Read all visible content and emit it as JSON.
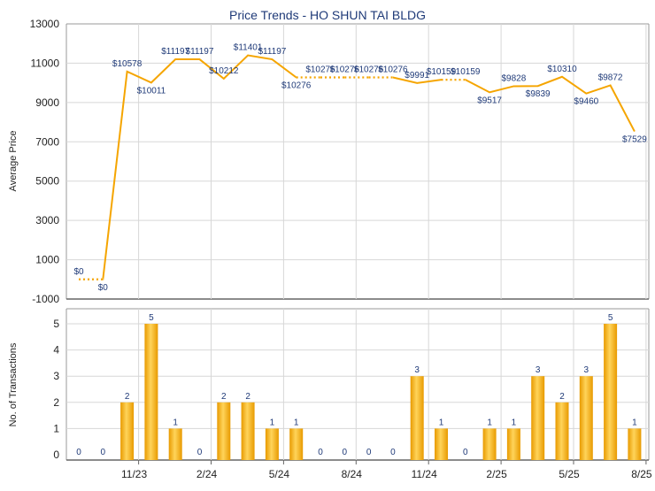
{
  "chart_data": [
    {
      "type": "line",
      "title": "Price Trends - HO SHUN TAI BLDG",
      "ylabel": "Average Price",
      "ylim": [
        -1000,
        13000
      ],
      "yticks": [
        "13000",
        "11000",
        "9000",
        "7000",
        "5000",
        "3000",
        "1000",
        "-1000"
      ],
      "grid": true,
      "line_color": "#f5a500",
      "x": [
        "9/23",
        "10/23",
        "11/23",
        "12/23",
        "1/24",
        "2/24",
        "3/24",
        "4/24",
        "5/24",
        "6/24",
        "7/24",
        "8/24",
        "9/24",
        "10/24",
        "11/24",
        "12/24",
        "1/25",
        "2/25",
        "3/25",
        "4/25",
        "5/25",
        "6/25",
        "7/25",
        "8/25"
      ],
      "values": [
        0,
        0,
        10578,
        10011,
        11197,
        11197,
        10212,
        11401,
        11197,
        10276,
        10276,
        10276,
        10276,
        10276,
        9991,
        10159,
        10159,
        9517,
        9828,
        9839,
        10310,
        9460,
        9872,
        7529
      ],
      "value_labels": [
        "$0",
        "$0",
        "$10578",
        "$10011",
        "$11197",
        "$11197",
        "$10212",
        "$11401",
        "$11197",
        "$10276",
        "$10276",
        "$10276",
        "$10276",
        "$10276",
        "$9991",
        "$10159",
        "$10159",
        "$9517",
        "$9828",
        "$9839",
        "$10310",
        "$9460",
        "$9872",
        "$7529"
      ],
      "dotted_points": [
        1,
        10,
        11,
        12,
        13,
        16
      ]
    },
    {
      "type": "bar",
      "ylabel": "No. of Transactions",
      "ylim": [
        0,
        5
      ],
      "yticks": [
        "5",
        "4",
        "3",
        "2",
        "1",
        "0"
      ],
      "grid": true,
      "bar_color": "#f5a500",
      "x": [
        "9/23",
        "10/23",
        "11/23",
        "12/23",
        "1/24",
        "2/24",
        "3/24",
        "4/24",
        "5/24",
        "6/24",
        "7/24",
        "8/24",
        "9/24",
        "10/24",
        "11/24",
        "12/24",
        "1/25",
        "2/25",
        "3/25",
        "4/25",
        "5/25",
        "6/25",
        "7/25",
        "8/25"
      ],
      "values": [
        0,
        0,
        2,
        5,
        1,
        0,
        2,
        2,
        1,
        1,
        0,
        0,
        0,
        0,
        3,
        1,
        0,
        1,
        1,
        3,
        2,
        3,
        5,
        1
      ],
      "xtick_labels": [
        "11/23",
        "2/24",
        "5/24",
        "8/24",
        "11/24",
        "2/25",
        "5/25",
        "8/25"
      ],
      "xtick_indices": [
        2,
        5,
        8,
        11,
        14,
        17,
        20,
        23
      ]
    }
  ]
}
